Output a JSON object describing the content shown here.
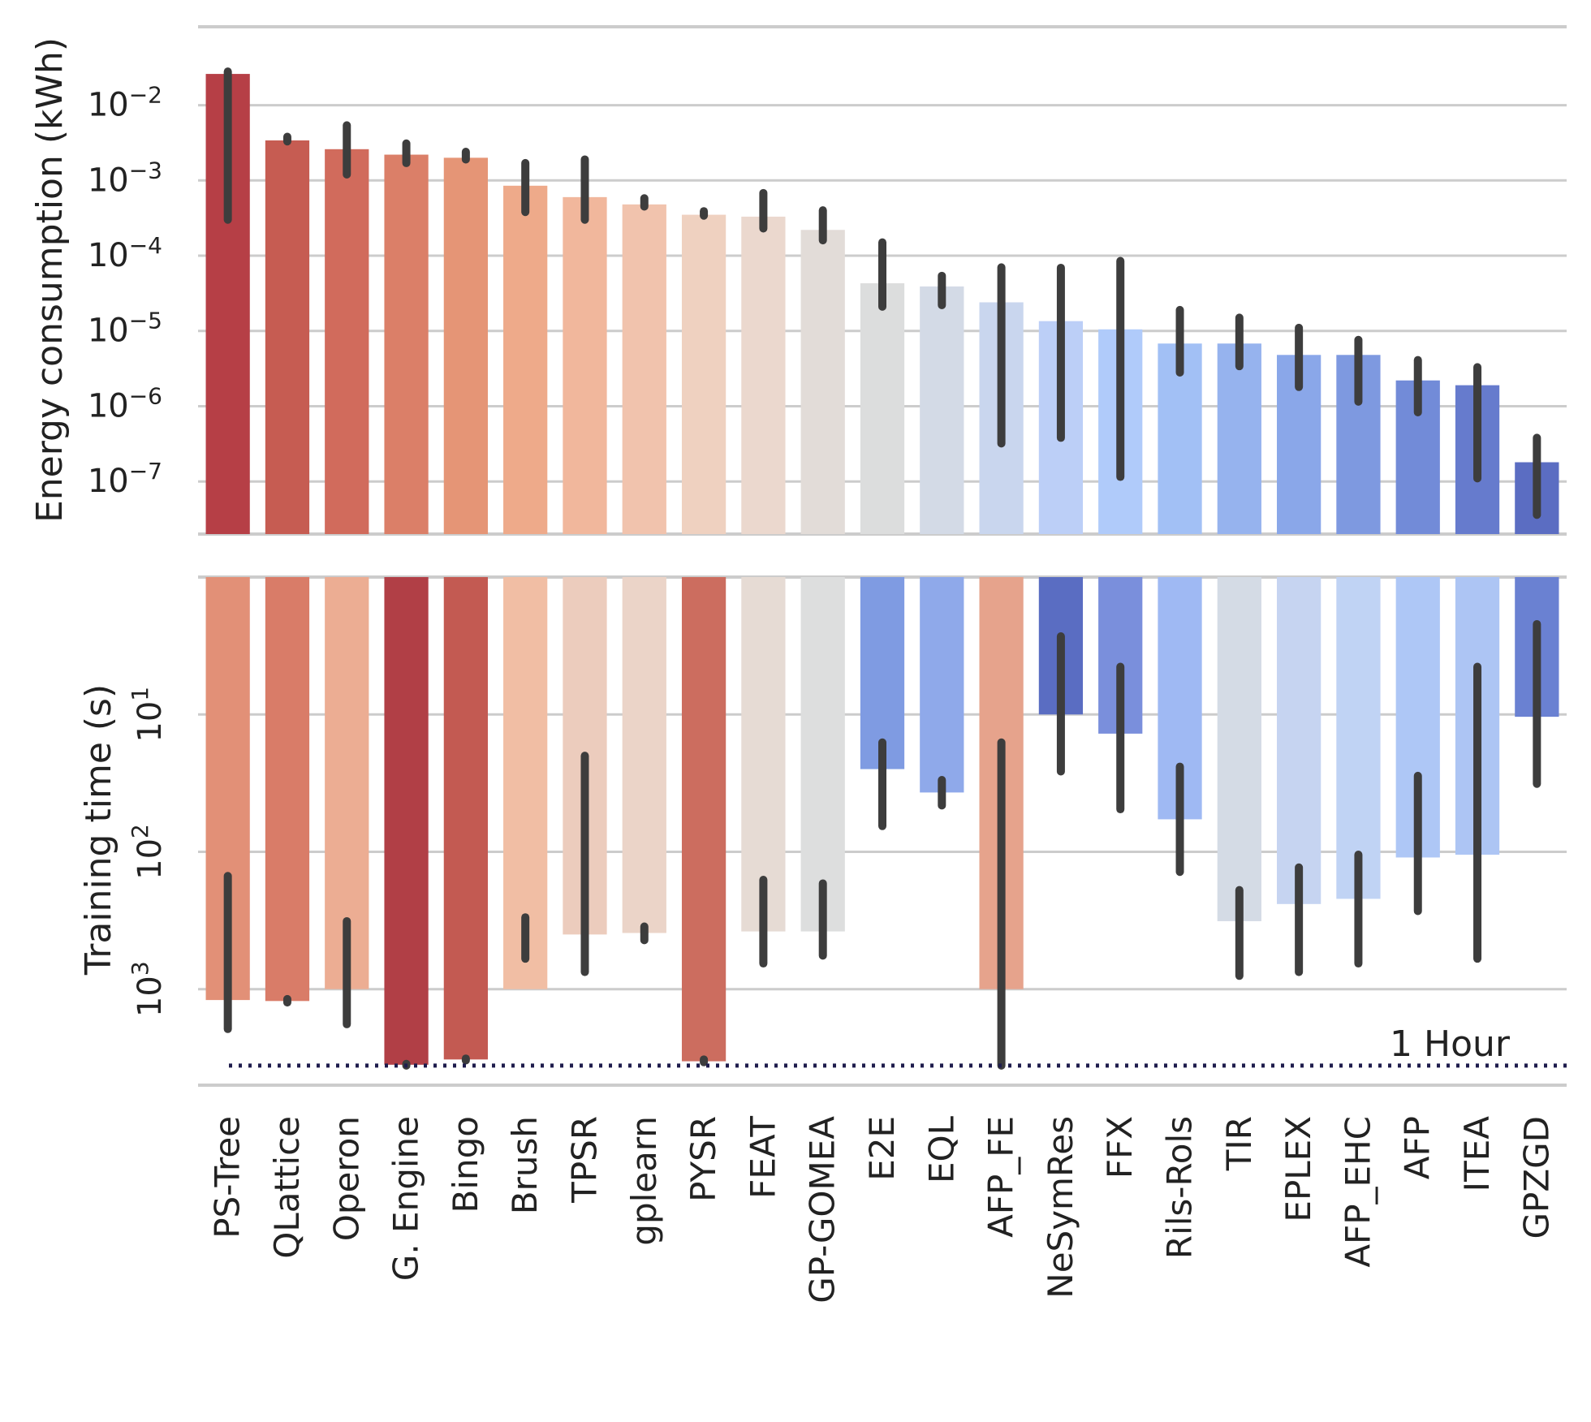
{
  "chart_data": [
    {
      "type": "bar",
      "panel": "top",
      "ylabel": "Energy consumption (kWh)",
      "yscale": "log",
      "ylim": [
        2e-08,
        0.11
      ],
      "yticks": [
        {
          "value": 0.01,
          "base": "10",
          "exp": "−2"
        },
        {
          "value": 0.001,
          "base": "10",
          "exp": "−3"
        },
        {
          "value": 0.0001,
          "base": "10",
          "exp": "−4"
        },
        {
          "value": 1e-05,
          "base": "10",
          "exp": "−5"
        },
        {
          "value": 1e-06,
          "base": "10",
          "exp": "−6"
        },
        {
          "value": 1e-07,
          "base": "10",
          "exp": "−7"
        }
      ],
      "categories": [
        "PS-Tree",
        "QLattice",
        "Operon",
        "G. Engine",
        "Bingo",
        "Brush",
        "TPSR",
        "gplearn",
        "PYSR",
        "FEAT",
        "GP-GOMEA",
        "E2E",
        "EQL",
        "AFP_FE",
        "NeSymRes",
        "FFX",
        "Rils-Rols",
        "TIR",
        "EPLEX",
        "AFP_EHC",
        "AFP",
        "ITEA",
        "GPZGD"
      ],
      "values": [
        0.026,
        0.0034,
        0.0026,
        0.0022,
        0.002,
        0.00085,
        0.0006,
        0.00048,
        0.00035,
        0.00033,
        0.00022,
        4.3e-05,
        3.9e-05,
        2.4e-05,
        1.35e-05,
        1.05e-05,
        6.8e-06,
        6.8e-06,
        4.8e-06,
        4.8e-06,
        2.2e-06,
        1.9e-06,
        1.8e-07
      ],
      "err_low": [
        0.0003,
        0.0033,
        0.0012,
        0.0017,
        0.0019,
        0.00038,
        0.0003,
        0.00045,
        0.00034,
        0.00023,
        0.00016,
        2.1e-05,
        2.2e-05,
        3.2e-07,
        3.8e-07,
        1.15e-07,
        2.8e-06,
        3.4e-06,
        1.8e-06,
        1.15e-06,
        8.3e-07,
        1.1e-07,
        3.6e-08
      ],
      "err_high": [
        0.028,
        0.0038,
        0.0054,
        0.0031,
        0.0024,
        0.0017,
        0.0019,
        0.00058,
        0.00039,
        0.00068,
        0.0004,
        0.00015,
        5.4e-05,
        7e-05,
        6.9e-05,
        8.5e-05,
        1.9e-05,
        1.5e-05,
        1.1e-05,
        7.6e-06,
        4.1e-06,
        3.3e-06,
        3.8e-07
      ],
      "colors": [
        "#b63f46",
        "#c65c52",
        "#d16b5c",
        "#db7f68",
        "#e59576",
        "#eeaa8a",
        "#f1b79c",
        "#f1c3ad",
        "#efd1c0",
        "#ebd8ce",
        "#e2dcd8",
        "#dcdddd",
        "#d3dae6",
        "#c9d6ee",
        "#bccff7",
        "#b0cbfa",
        "#a2c0f5",
        "#96b3ee",
        "#8aa7e9",
        "#7e99e0",
        "#728bd8",
        "#667bcd",
        "#5b6dc2"
      ]
    },
    {
      "type": "bar",
      "panel": "bottom",
      "ylabel": "Training time (s)",
      "yscale": "log",
      "inverted": true,
      "ylim": [
        1,
        5000
      ],
      "yticks": [
        {
          "value": 10,
          "base": "10",
          "exp": "1"
        },
        {
          "value": 100,
          "base": "10",
          "exp": "2"
        },
        {
          "value": 1000,
          "base": "10",
          "exp": "3"
        }
      ],
      "reference_line": {
        "value": 3600,
        "label": "1 Hour"
      },
      "categories": [
        "PS-Tree",
        "QLattice",
        "Operon",
        "G. Engine",
        "Bingo",
        "Brush",
        "TPSR",
        "gplearn",
        "PYSR",
        "FEAT",
        "GP-GOMEA",
        "E2E",
        "EQL",
        "AFP_FE",
        "NeSymRes",
        "FFX",
        "Rils-Rols",
        "TIR",
        "EPLEX",
        "AFP_EHC",
        "AFP",
        "ITEA",
        "GPZGD"
      ],
      "values": [
        1200,
        1220,
        1000,
        3550,
        3250,
        1000,
        400,
        390,
        3350,
        380,
        380,
        25,
        37,
        1000,
        10,
        13.8,
        58,
        320,
        240,
        220,
        110,
        105,
        10.4
      ],
      "err_low": [
        150,
        1180,
        320,
        3500,
        3200,
        300,
        20,
        350,
        3250,
        160,
        170,
        16,
        30,
        16,
        2.7,
        4.5,
        24,
        190,
        130,
        105,
        28,
        4.5,
        2.2
      ],
      "err_high": [
        1950,
        1250,
        1800,
        3600,
        3300,
        600,
        750,
        440,
        3400,
        650,
        570,
        65,
        46,
        3600,
        26,
        49,
        140,
        800,
        750,
        650,
        270,
        600,
        32
      ],
      "colors": [
        "#e29077",
        "#d97c68",
        "#ecad93",
        "#b13f46",
        "#c35a52",
        "#f1bea4",
        "#ecccbd",
        "#ebd4c8",
        "#cc6d5f",
        "#e6dbd4",
        "#dddede",
        "#7f9be2",
        "#8fa9ea",
        "#e6a38c",
        "#5a6dc2",
        "#7a8fdc",
        "#9fb9f3",
        "#d4dbe5",
        "#c6d4f1",
        "#c0d3f4",
        "#aec7f6",
        "#adc5f4",
        "#6a81d2"
      ]
    }
  ]
}
